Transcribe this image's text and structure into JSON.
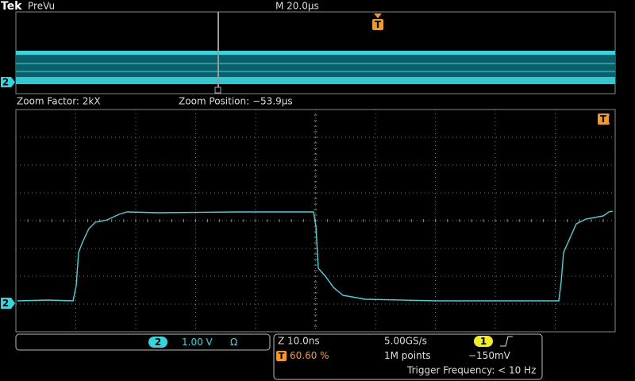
{
  "header": {
    "brand": "Tek",
    "mode": "PreVu",
    "timebase": "M 20.0µs"
  },
  "trigger_marker": "T",
  "zoom": {
    "factor": "Zoom Factor: 2kX",
    "position": "Zoom Position: −53.9µs"
  },
  "channel": {
    "number": "2",
    "scale": "1.00 V",
    "coupling": "Ω"
  },
  "acquisition": {
    "zoom_scale": "Z 10.0ns",
    "sample_rate": "5.00GS/s",
    "trigger_source": "1",
    "trigger_position": "60.60 %",
    "record_length": "1M points",
    "trigger_level": "−150mV",
    "trigger_frequency": "Trigger Frequency: < 10 Hz"
  }
}
